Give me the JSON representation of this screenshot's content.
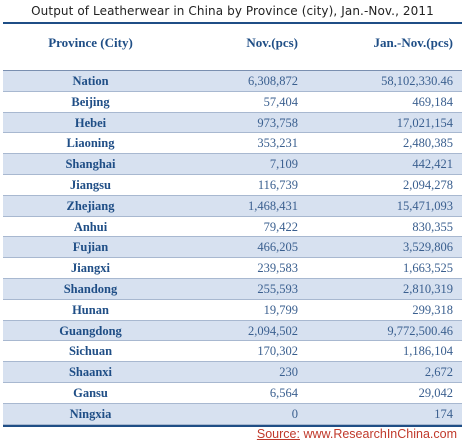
{
  "chart_data": {
    "type": "table",
    "title": "Output of Leatherwear in China by Province (city), Jan.-Nov., 2011",
    "columns": [
      "Province (City)",
      "Nov.(pcs)",
      "Jan.-Nov.(pcs)"
    ],
    "rows": [
      {
        "province": "Nation",
        "nov": "6,308,872",
        "jan_nov": "58,102,330.46"
      },
      {
        "province": "Beijing",
        "nov": "57,404",
        "jan_nov": "469,184"
      },
      {
        "province": "Hebei",
        "nov": "973,758",
        "jan_nov": "17,021,154"
      },
      {
        "province": "Liaoning",
        "nov": "353,231",
        "jan_nov": "2,480,385"
      },
      {
        "province": "Shanghai",
        "nov": "7,109",
        "jan_nov": "442,421"
      },
      {
        "province": "Jiangsu",
        "nov": "116,739",
        "jan_nov": "2,094,278"
      },
      {
        "province": "Zhejiang",
        "nov": "1,468,431",
        "jan_nov": "15,471,093"
      },
      {
        "province": "Anhui",
        "nov": "79,422",
        "jan_nov": "830,355"
      },
      {
        "province": "Fujian",
        "nov": "466,205",
        "jan_nov": "3,529,806"
      },
      {
        "province": "Jiangxi",
        "nov": "239,583",
        "jan_nov": "1,663,525"
      },
      {
        "province": "Shandong",
        "nov": "255,593",
        "jan_nov": "2,810,319"
      },
      {
        "province": "Hunan",
        "nov": "19,799",
        "jan_nov": "299,318"
      },
      {
        "province": "Guangdong",
        "nov": "2,094,502",
        "jan_nov": "9,772,500.46"
      },
      {
        "province": "Sichuan",
        "nov": "170,302",
        "jan_nov": "1,186,104"
      },
      {
        "province": "Shaanxi",
        "nov": "230",
        "jan_nov": "2,672"
      },
      {
        "province": "Gansu",
        "nov": "6,564",
        "jan_nov": "29,042"
      },
      {
        "province": "Ningxia",
        "nov": "0",
        "jan_nov": "174"
      }
    ]
  },
  "source": {
    "label": "Source:",
    "site": "www.ResearchInChina.com"
  },
  "colors": {
    "header_text": "#1f4e86",
    "row_shade": "#d7e1f0",
    "source_text": "#c0392b"
  }
}
